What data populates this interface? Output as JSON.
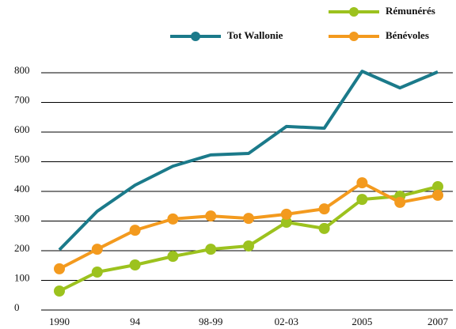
{
  "chart_data": {
    "type": "line",
    "categories": [
      "1990",
      null,
      "94",
      null,
      "98-99",
      null,
      "02-03",
      null,
      "2005",
      null,
      "2007"
    ],
    "series": [
      {
        "name": "Tot Wallonie",
        "color": "#1b7a8a",
        "markers": false,
        "values": [
          203,
          333,
          421,
          485,
          523,
          528,
          619,
          613,
          805,
          749,
          803
        ]
      },
      {
        "name": "Rémunérés",
        "color": "#9cc21e",
        "markers": true,
        "values": [
          64,
          128,
          152,
          181,
          205,
          216,
          296,
          275,
          373,
          384,
          416
        ]
      },
      {
        "name": "Bénévoles",
        "color": "#f39a1e",
        "markers": true,
        "values": [
          139,
          205,
          269,
          307,
          317,
          309,
          323,
          341,
          429,
          363,
          387
        ]
      }
    ],
    "ylim": [
      0,
      800
    ],
    "yticks": [
      0,
      100,
      200,
      300,
      400,
      500,
      600,
      700,
      800
    ],
    "grid": true
  }
}
